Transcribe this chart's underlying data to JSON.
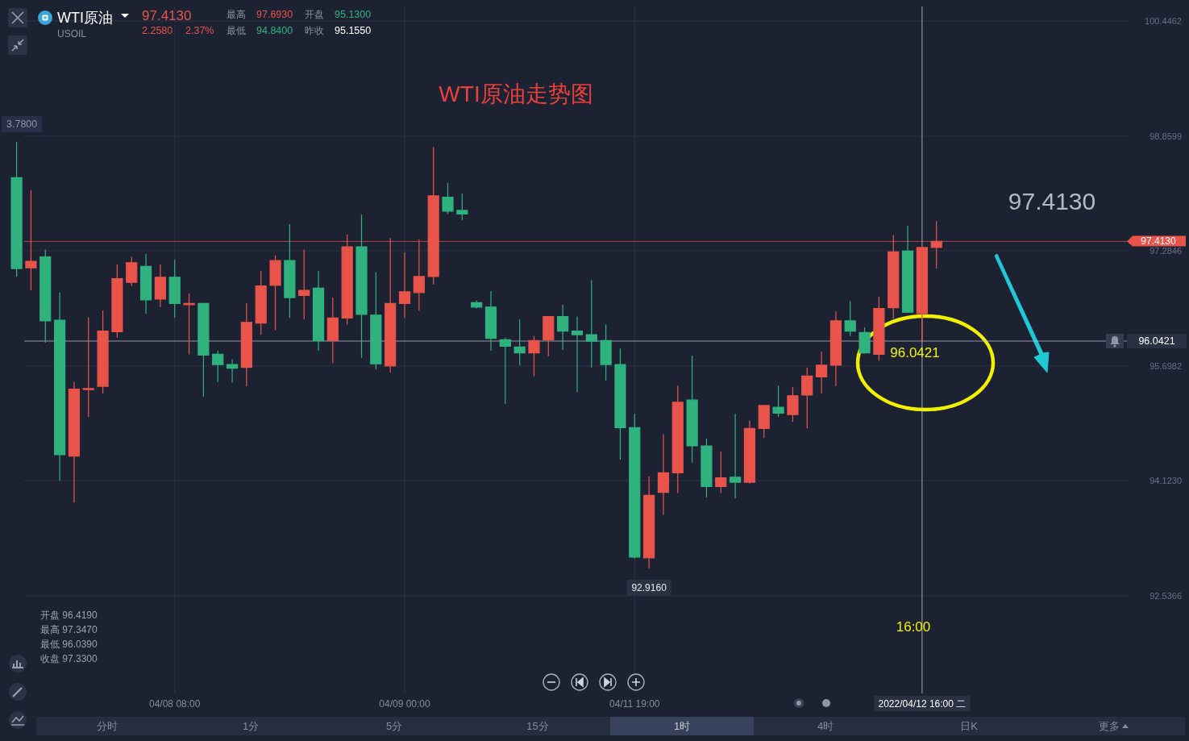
{
  "chart_data": {
    "type": "candlestick",
    "title": "WTI原油走势图",
    "categories": [
      null,
      null,
      null,
      null,
      null,
      null,
      null,
      null,
      null,
      null,
      null,
      "04/08 08:00",
      null,
      null,
      null,
      null,
      null,
      null,
      null,
      null,
      null,
      null,
      null,
      null,
      null,
      null,
      null,
      "04/09 00:00",
      null,
      null,
      null,
      null,
      null,
      null,
      null,
      null,
      null,
      null,
      null,
      null,
      null,
      null,
      null,
      "04/11 19:00",
      null,
      null,
      null,
      null,
      null,
      null,
      null,
      null,
      null,
      null,
      null,
      null,
      null,
      null,
      null,
      null,
      null,
      null,
      null,
      "2022/04/12 16:00 二",
      null,
      null,
      null,
      null,
      null,
      null,
      null,
      null,
      null,
      null,
      null,
      null,
      null,
      null
    ],
    "ohlc": [
      [
        98.29,
        98.78,
        96.93,
        97.04
      ],
      [
        97.05,
        98.12,
        96.74,
        97.14
      ],
      [
        97.2,
        97.3,
        96.02,
        96.32
      ],
      [
        96.33,
        96.71,
        94.12,
        94.48
      ],
      [
        94.46,
        95.48,
        93.82,
        95.38
      ],
      [
        95.38,
        96.37,
        95.0,
        95.39
      ],
      [
        95.42,
        96.46,
        95.32,
        96.18
      ],
      [
        96.17,
        97.1,
        96.09,
        96.9
      ],
      [
        96.85,
        97.2,
        96.8,
        97.12
      ],
      [
        97.07,
        97.24,
        96.42,
        96.61
      ],
      [
        96.62,
        97.1,
        96.51,
        96.92
      ],
      [
        96.92,
        97.16,
        96.36,
        96.56
      ],
      [
        96.55,
        96.7,
        95.86,
        96.56
      ],
      [
        96.56,
        96.57,
        95.28,
        95.85
      ],
      [
        95.86,
        95.91,
        95.48,
        95.72
      ],
      [
        95.72,
        95.79,
        95.47,
        95.67
      ],
      [
        95.68,
        96.56,
        95.42,
        96.3
      ],
      [
        96.29,
        97.01,
        96.13,
        96.8
      ],
      [
        96.81,
        97.22,
        96.19,
        97.15
      ],
      [
        97.15,
        97.65,
        96.36,
        96.64
      ],
      [
        96.67,
        97.3,
        96.34,
        96.74
      ],
      [
        96.77,
        97.01,
        95.91,
        96.05
      ],
      [
        96.05,
        96.64,
        95.74,
        96.36
      ],
      [
        96.36,
        97.51,
        96.27,
        97.34
      ],
      [
        97.34,
        97.78,
        95.81,
        96.41
      ],
      [
        96.4,
        96.99,
        95.65,
        95.73
      ],
      [
        95.7,
        97.46,
        95.61,
        96.56
      ],
      [
        96.56,
        97.26,
        96.36,
        96.72
      ],
      [
        96.71,
        97.44,
        96.46,
        96.93
      ],
      [
        96.93,
        98.71,
        96.82,
        98.04
      ],
      [
        98.02,
        98.22,
        97.79,
        97.83
      ],
      [
        97.84,
        98.07,
        97.71,
        97.79
      ],
      [
        96.57,
        96.6,
        96.49,
        96.51
      ],
      [
        96.51,
        96.73,
        95.91,
        96.08
      ],
      [
        96.06,
        96.09,
        95.18,
        95.97
      ],
      [
        95.96,
        96.34,
        95.71,
        95.88
      ],
      [
        95.88,
        96.11,
        95.56,
        96.05
      ],
      [
        96.06,
        96.39,
        95.83,
        96.38
      ],
      [
        96.38,
        96.54,
        95.92,
        96.18
      ],
      [
        96.18,
        96.38,
        95.34,
        96.13
      ],
      [
        96.13,
        96.88,
        95.68,
        96.04
      ],
      [
        96.05,
        96.27,
        95.5,
        95.72
      ],
      [
        95.72,
        95.94,
        94.41,
        94.85
      ],
      [
        94.85,
        95.04,
        93.05,
        93.07
      ],
      [
        93.06,
        94.18,
        92.916,
        93.92
      ],
      [
        93.96,
        94.76,
        93.65,
        94.23
      ],
      [
        94.23,
        95.43,
        93.95,
        95.2
      ],
      [
        95.23,
        95.84,
        94.37,
        94.6
      ],
      [
        94.6,
        94.7,
        93.89,
        94.04
      ],
      [
        94.04,
        94.52,
        93.95,
        94.16
      ],
      [
        94.17,
        95.04,
        93.88,
        94.1
      ],
      [
        94.1,
        94.95,
        94.08,
        94.84
      ],
      [
        94.84,
        95.16,
        94.71,
        95.155
      ],
      [
        95.13,
        95.43,
        95.0,
        95.05
      ],
      [
        95.03,
        95.41,
        94.93,
        95.29
      ],
      [
        95.3,
        95.68,
        94.84,
        95.56
      ],
      [
        95.55,
        95.9,
        95.32,
        95.71
      ],
      [
        95.71,
        96.45,
        95.42,
        96.32
      ],
      [
        96.32,
        96.59,
        96.11,
        96.18
      ],
      [
        96.16,
        96.23,
        95.87,
        95.88
      ],
      [
        95.86,
        96.65,
        95.77,
        96.49
      ],
      [
        96.5,
        97.5,
        96.35,
        97.27
      ],
      [
        97.28,
        97.63,
        96.43,
        96.44
      ],
      [
        96.419,
        97.347,
        96.039,
        97.33
      ],
      [
        97.33,
        97.693,
        97.04,
        97.413
      ],
      null,
      null,
      null,
      null,
      null,
      null,
      null,
      null,
      null,
      null,
      null,
      null,
      null
    ],
    "colors": [
      "#30b27f",
      "#e8534a",
      "#30b27f",
      "#30b27f",
      "#e8534a",
      "#e8534a",
      "#e8534a",
      "#e8534a",
      "#e8534a",
      "#30b27f",
      "#e8534a",
      "#30b27f",
      "#e8534a",
      "#30b27f",
      "#30b27f",
      "#30b27f",
      "#e8534a",
      "#e8534a",
      "#e8534a",
      "#30b27f",
      "#e8534a",
      "#30b27f",
      "#e8534a",
      "#e8534a",
      "#30b27f",
      "#30b27f",
      "#e8534a",
      "#e8534a",
      "#e8534a",
      "#e8534a",
      "#30b27f",
      "#30b27f",
      "#30b27f",
      "#30b27f",
      "#30b27f",
      "#30b27f",
      "#e8534a",
      "#e8534a",
      "#30b27f",
      "#30b27f",
      "#30b27f",
      "#30b27f",
      "#30b27f",
      "#30b27f",
      "#e8534a",
      "#e8534a",
      "#e8534a",
      "#30b27f",
      "#30b27f",
      "#e8534a",
      "#30b27f",
      "#e8534a",
      "#e8534a",
      "#30b27f",
      "#e8534a",
      "#e8534a",
      "#e8534a",
      "#e8534a",
      "#30b27f",
      "#30b27f",
      "#e8534a",
      "#e8534a",
      "#30b27f",
      "#e8534a",
      "#e8534a",
      null,
      null,
      null,
      null,
      null,
      null,
      null,
      null,
      null,
      null,
      null,
      null,
      null
    ],
    "ylim": [
      91.194,
      100.646
    ],
    "yticks": [
      {
        "value": 92.5366,
        "label": "92.5366"
      },
      {
        "value": 94.123,
        "label": "94.1230"
      },
      {
        "value": 95.6982,
        "label": "95.6982"
      },
      {
        "value": 97.2846,
        "label": "97.2846"
      },
      {
        "value": 98.8599,
        "label": "98.8599"
      },
      {
        "value": 100.4462,
        "label": "100.4462"
      }
    ],
    "grid": true,
    "ref_lines": [
      {
        "axis": "y",
        "value": 97.413,
        "label": "97.4130",
        "color": "#e8534a"
      },
      {
        "axis": "y",
        "value": 96.0421,
        "label": "96.0421",
        "color": "#c8ccd4"
      },
      {
        "axis": "x",
        "value": "2022/04/12 16:00 二",
        "color": "#c8ccd4"
      }
    ],
    "annotations": [
      "WTI原油",
      "USOIL",
      "97.4130",
      "2.2580",
      "2.37%",
      "最高",
      "97.6930",
      "开盘",
      "95.1300",
      "最低",
      "94.8400",
      "昨收",
      "95.1550",
      "97.4130",
      "96.0421",
      "16:00",
      "开盘 96.4190",
      "最高 97.3470",
      "最低 96.0390",
      "收盘 97.3300",
      {
        "text": "92.9160",
        "y": 92.916
      },
      "3.7800",
      "分时",
      "1分",
      "5分",
      "15分",
      "1时",
      "4时",
      "日K",
      "更多"
    ]
  }
}
